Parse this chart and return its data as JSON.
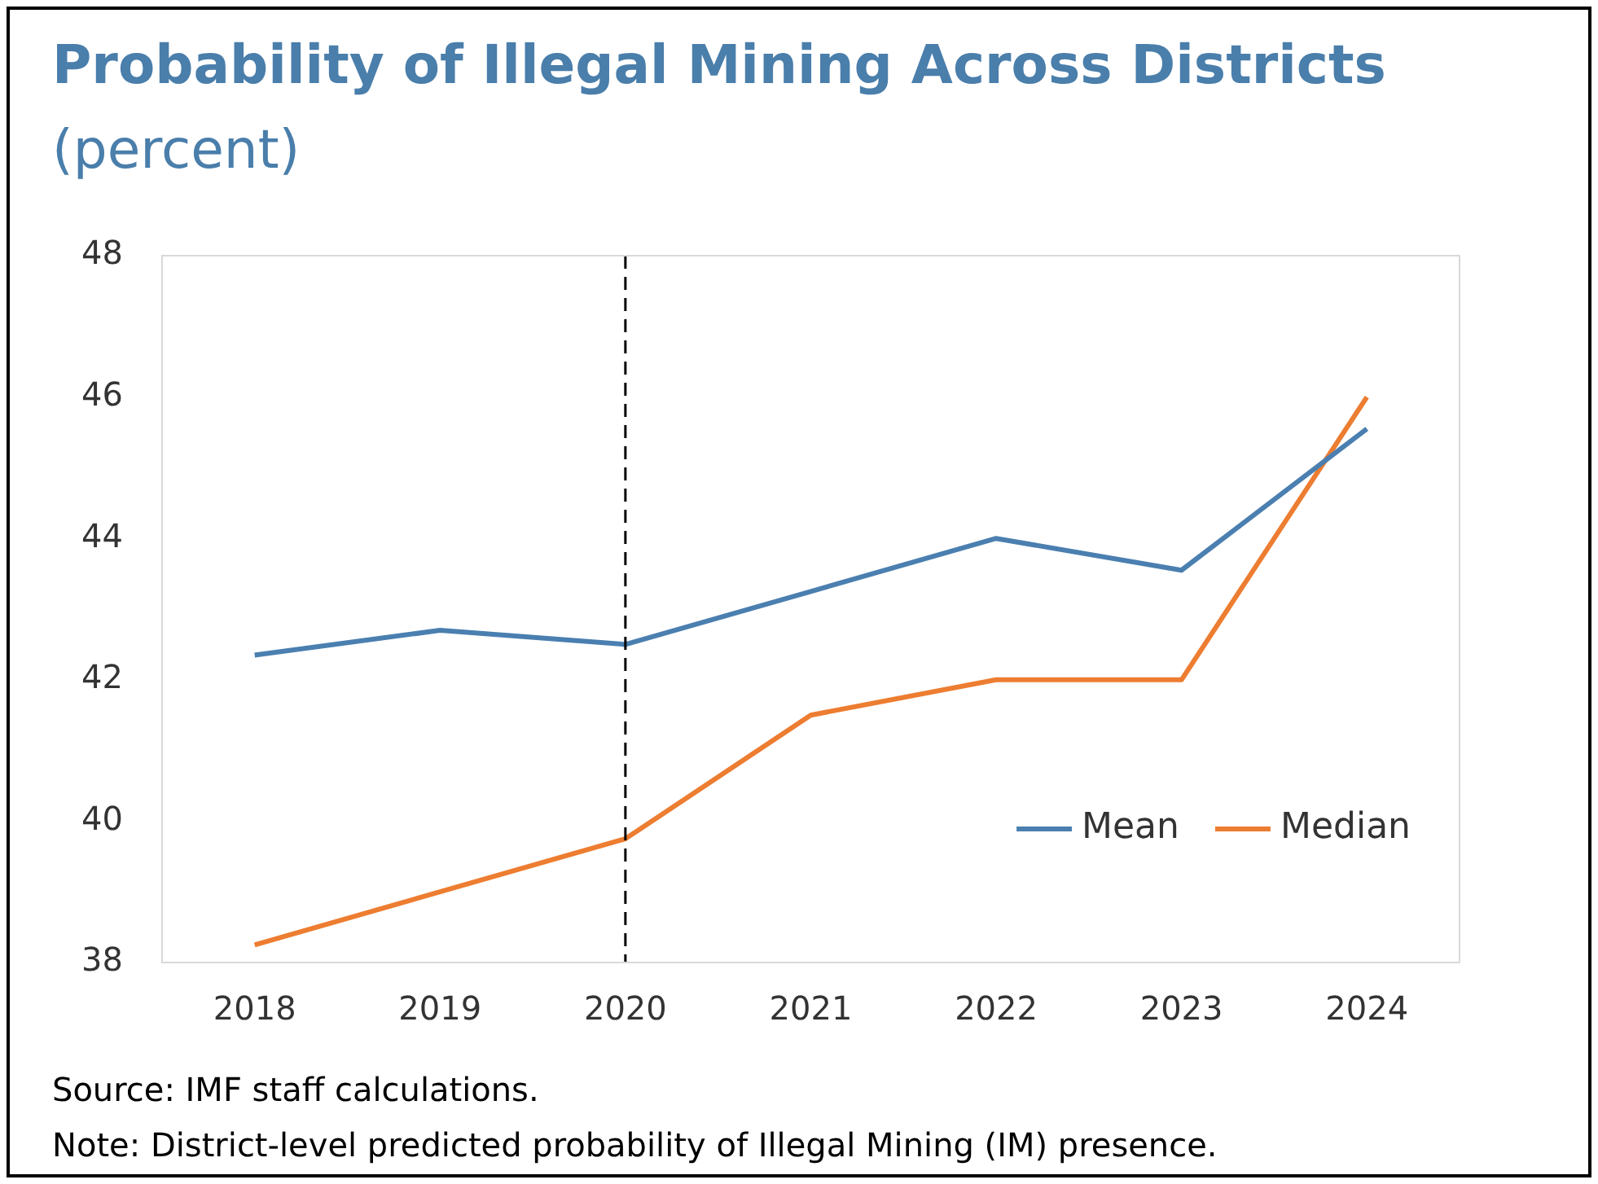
{
  "chart_data": {
    "type": "line",
    "title": "Probability of Illegal Mining Across Districts",
    "subtitle": "(percent)",
    "categories": [
      "2018",
      "2019",
      "2020",
      "2021",
      "2022",
      "2023",
      "2024"
    ],
    "series": [
      {
        "name": "Mean",
        "color": "#4a7fb0",
        "values": [
          42.35,
          42.7,
          42.5,
          43.25,
          44.0,
          43.55,
          45.55
        ]
      },
      {
        "name": "Median",
        "color": "#ed7d31",
        "values": [
          38.25,
          39.0,
          39.75,
          41.5,
          42.0,
          42.0,
          46.0
        ]
      }
    ],
    "ylim": [
      38,
      48
    ],
    "yticks": [
      38,
      40,
      42,
      44,
      46,
      48
    ],
    "grid": false,
    "legend": "bottom right",
    "marker": "none",
    "line_style": "solid",
    "ref_lines": [
      {
        "axis": "x",
        "value": "2020",
        "color": "#000000",
        "line_style": "dashed"
      }
    ],
    "annotations": [
      "Source: IMF staff calculations.",
      "Note: District-level predicted probability of Illegal Mining (IM) presence."
    ]
  }
}
